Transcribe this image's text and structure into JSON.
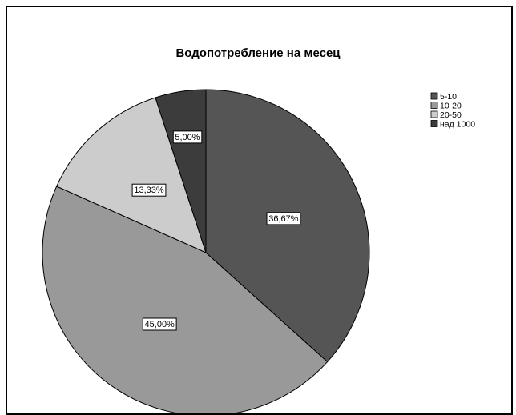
{
  "chart_data": {
    "type": "pie",
    "title": "Водопотребление на месец",
    "legend_position": "top-right",
    "slices": [
      {
        "label": "5-10",
        "value": 36.67,
        "display": "36,67%",
        "color": "#555555"
      },
      {
        "label": "10-20",
        "value": 45.0,
        "display": "45,00%",
        "color": "#999999"
      },
      {
        "label": "20-50",
        "value": 13.33,
        "display": "13,33%",
        "color": "#cccccc"
      },
      {
        "label": "над 1000",
        "value": 5.0,
        "display": "5,00%",
        "color": "#3c3c3c"
      }
    ]
  }
}
